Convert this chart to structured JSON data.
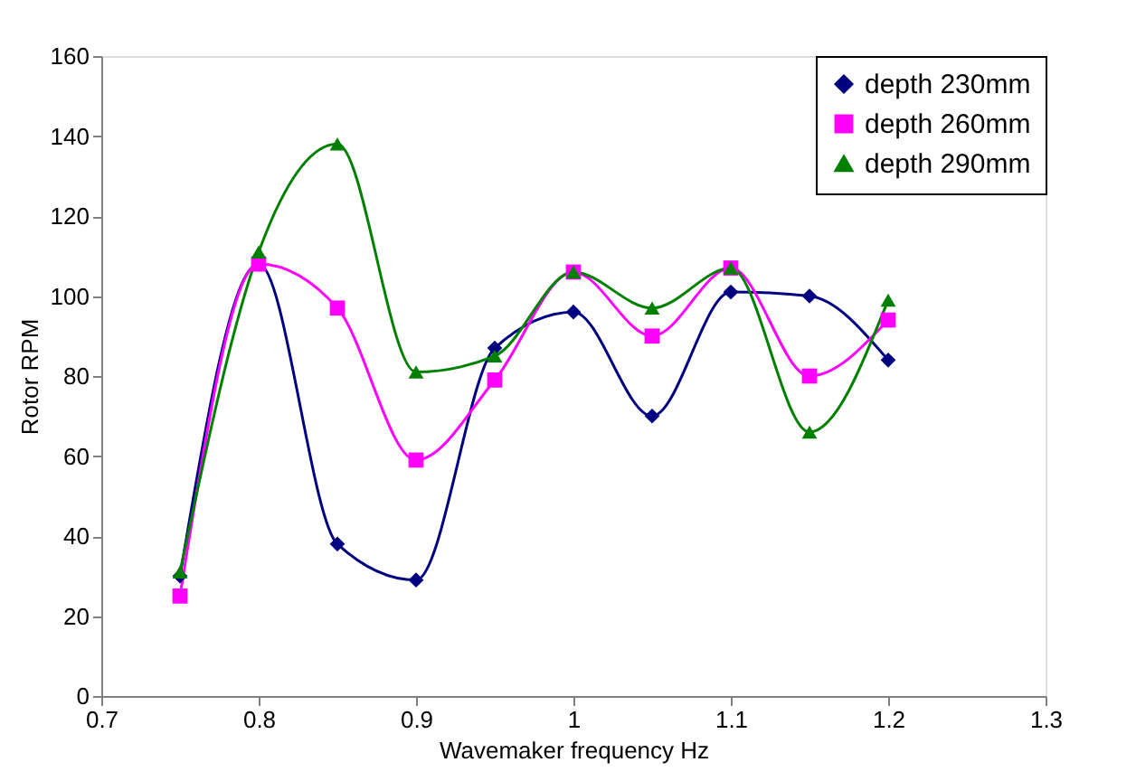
{
  "chart_data": {
    "type": "line",
    "xlabel": "Wavemaker frequency Hz",
    "ylabel": "Rotor RPM",
    "x": [
      0.75,
      0.8,
      0.85,
      0.9,
      0.95,
      1.0,
      1.05,
      1.1,
      1.15,
      1.2
    ],
    "series": [
      {
        "name": "depth 230mm",
        "color": "#000080",
        "marker": "diamond",
        "values": [
          30,
          108,
          38,
          29,
          87,
          96,
          70,
          101,
          100,
          84
        ]
      },
      {
        "name": "depth 260mm",
        "color": "#ff00ff",
        "marker": "square",
        "values": [
          25,
          108,
          97,
          59,
          79,
          106,
          90,
          107,
          80,
          94
        ]
      },
      {
        "name": "depth 290mm",
        "color": "#008000",
        "marker": "triangle",
        "values": [
          31,
          111,
          138,
          81,
          85,
          106,
          97,
          107,
          66,
          99
        ]
      }
    ],
    "xlim": [
      0.7,
      1.3
    ],
    "xticks": [
      0.7,
      0.8,
      0.9,
      1,
      1.1,
      1.2,
      1.3
    ],
    "ylim": [
      0,
      160
    ],
    "yticks": [
      0,
      20,
      40,
      60,
      80,
      100,
      120,
      140,
      160
    ],
    "grid": false,
    "legend": "top right",
    "line_style": "solid"
  }
}
